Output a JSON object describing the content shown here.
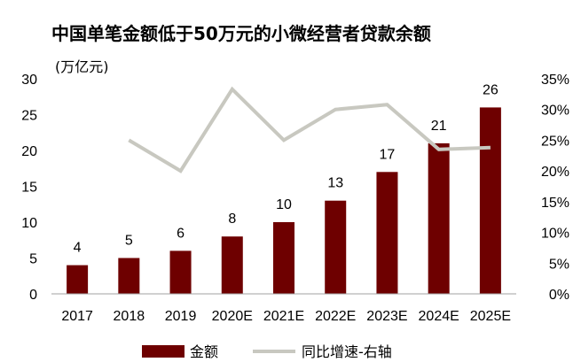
{
  "chart_data": {
    "type": "bar",
    "title": "中国单笔金额低于50万元的小微经营者贷款余额",
    "unit_label": "(万亿元)",
    "categories": [
      "2017",
      "2018",
      "2019",
      "2020E",
      "2021E",
      "2022E",
      "2023E",
      "2024E",
      "2025E"
    ],
    "series": [
      {
        "name": "金额",
        "kind": "bar",
        "axis": "left",
        "color": "#6e0000",
        "values": [
          4,
          5,
          6,
          8,
          10,
          13,
          17,
          21,
          26
        ],
        "data_labels": [
          "4",
          "5",
          "6",
          "8",
          "10",
          "13",
          "17",
          "21",
          "26"
        ]
      },
      {
        "name": "同比增速-右轴",
        "kind": "line",
        "axis": "right",
        "color": "#c8c8c0",
        "values": [
          null,
          25,
          20,
          33.3,
          25,
          30,
          30.8,
          23.5,
          23.8
        ]
      }
    ],
    "ylim_left": [
      0,
      30
    ],
    "yticks_left": [
      "0",
      "5",
      "10",
      "15",
      "20",
      "25",
      "30"
    ],
    "ylim_right": [
      0,
      35
    ],
    "yticks_right": [
      "0%",
      "5%",
      "10%",
      "15%",
      "20%",
      "25%",
      "30%",
      "35%"
    ],
    "grid": false,
    "legend_position": "bottom"
  }
}
